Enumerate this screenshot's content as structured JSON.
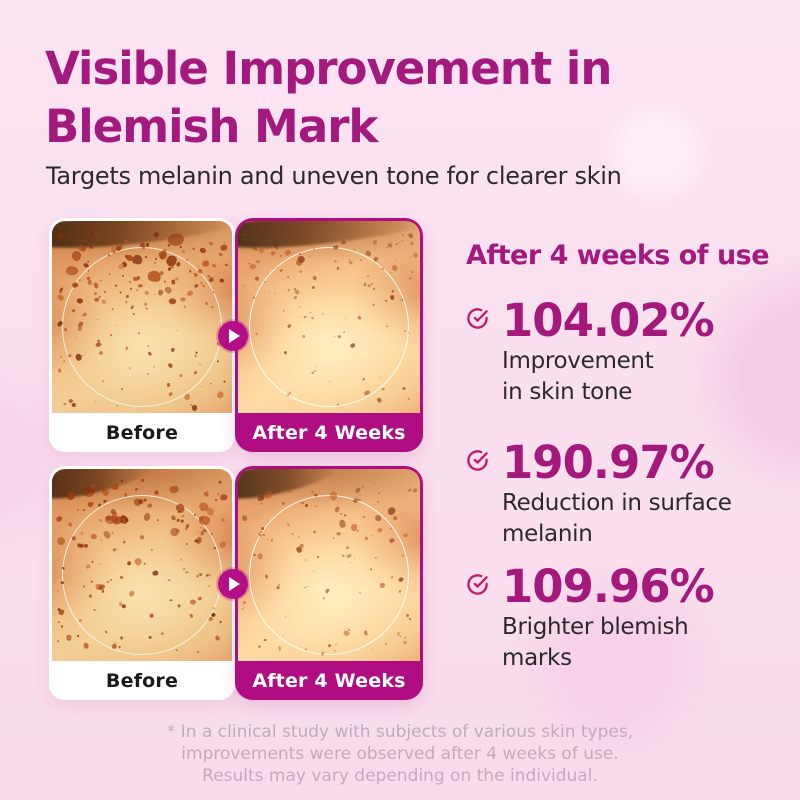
{
  "header": {
    "title_lines": [
      "Visible Improvement in",
      "Blemish Mark"
    ],
    "subtitle": "Targets melanin and uneven tone for clearer skin"
  },
  "comparisons": [
    {
      "before_label": "Before",
      "after_label": "After 4 Weeks"
    },
    {
      "before_label": "Before",
      "after_label": "After 4 Weeks"
    }
  ],
  "results": {
    "heading": "After 4 weeks of use",
    "stats": [
      {
        "value": "104.02%",
        "lines": [
          "Improvement",
          "in skin tone"
        ]
      },
      {
        "value": "190.97%",
        "lines": [
          "Reduction in surface",
          "melanin"
        ]
      },
      {
        "value": "109.96%",
        "lines": [
          "Brighter blemish",
          "marks"
        ]
      }
    ]
  },
  "footnote_lines": [
    "* In a clinical study with subjects of various skin types,",
    "improvements were observed after 4 weeks of use.",
    "Results may vary depending on the individual."
  ],
  "colors": {
    "accent_magenta": "#a4197d",
    "badge_magenta": "#b00d82",
    "check_pink": "#c41a64",
    "background_pink": "#fae0ef"
  },
  "icons": {
    "check": "check-circle-icon",
    "play": "play-icon"
  }
}
